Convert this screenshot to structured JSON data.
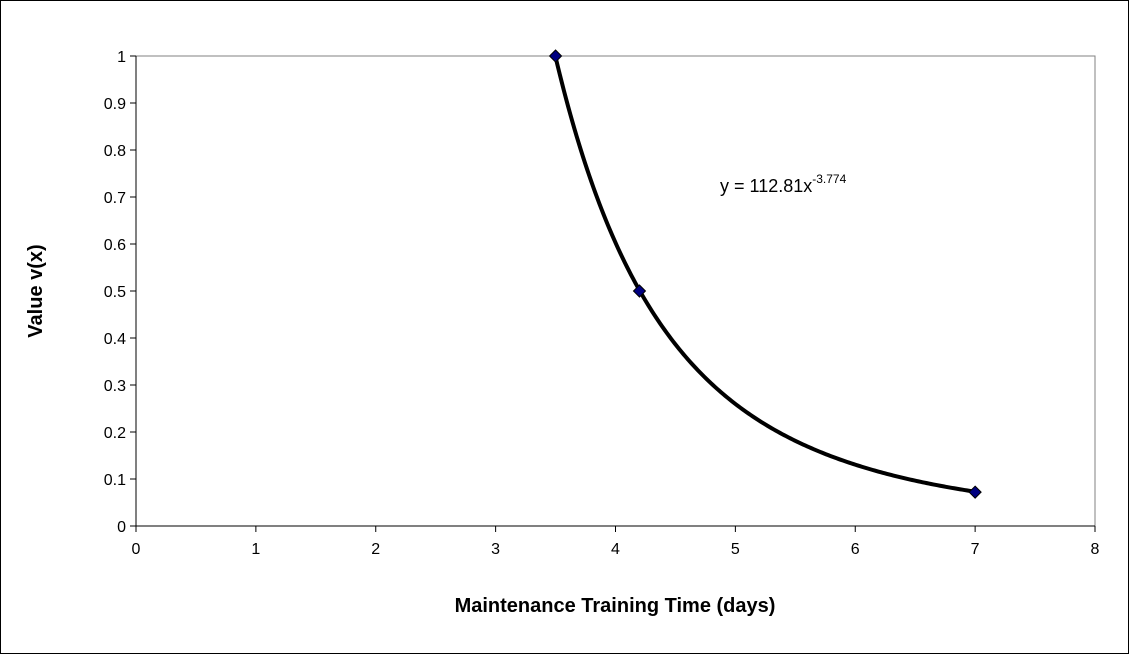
{
  "chart_data": {
    "type": "scatter",
    "x_label": "Maintenance Training Time (days)",
    "y_label": "Value v(x)",
    "series": [
      {
        "x": [
          3.5,
          4.2,
          7
        ],
        "values": [
          1,
          0.5,
          0.072
        ],
        "color": "#000080"
      }
    ],
    "trendline": {
      "kind": "power",
      "coefficient": 112.81,
      "exponent": -3.774,
      "color": "#000000",
      "label": "y = 112.81x",
      "label_exponent": "-3.774"
    },
    "xlim": [
      0,
      8
    ],
    "xticks": [
      0,
      1,
      2,
      3,
      4,
      5,
      6,
      7,
      8
    ],
    "ylim": [
      0,
      1
    ],
    "yticks": [
      0,
      0.1,
      0.2,
      0.3,
      0.4,
      0.5,
      0.6,
      0.7,
      0.8,
      0.9,
      1
    ],
    "grid": false
  }
}
